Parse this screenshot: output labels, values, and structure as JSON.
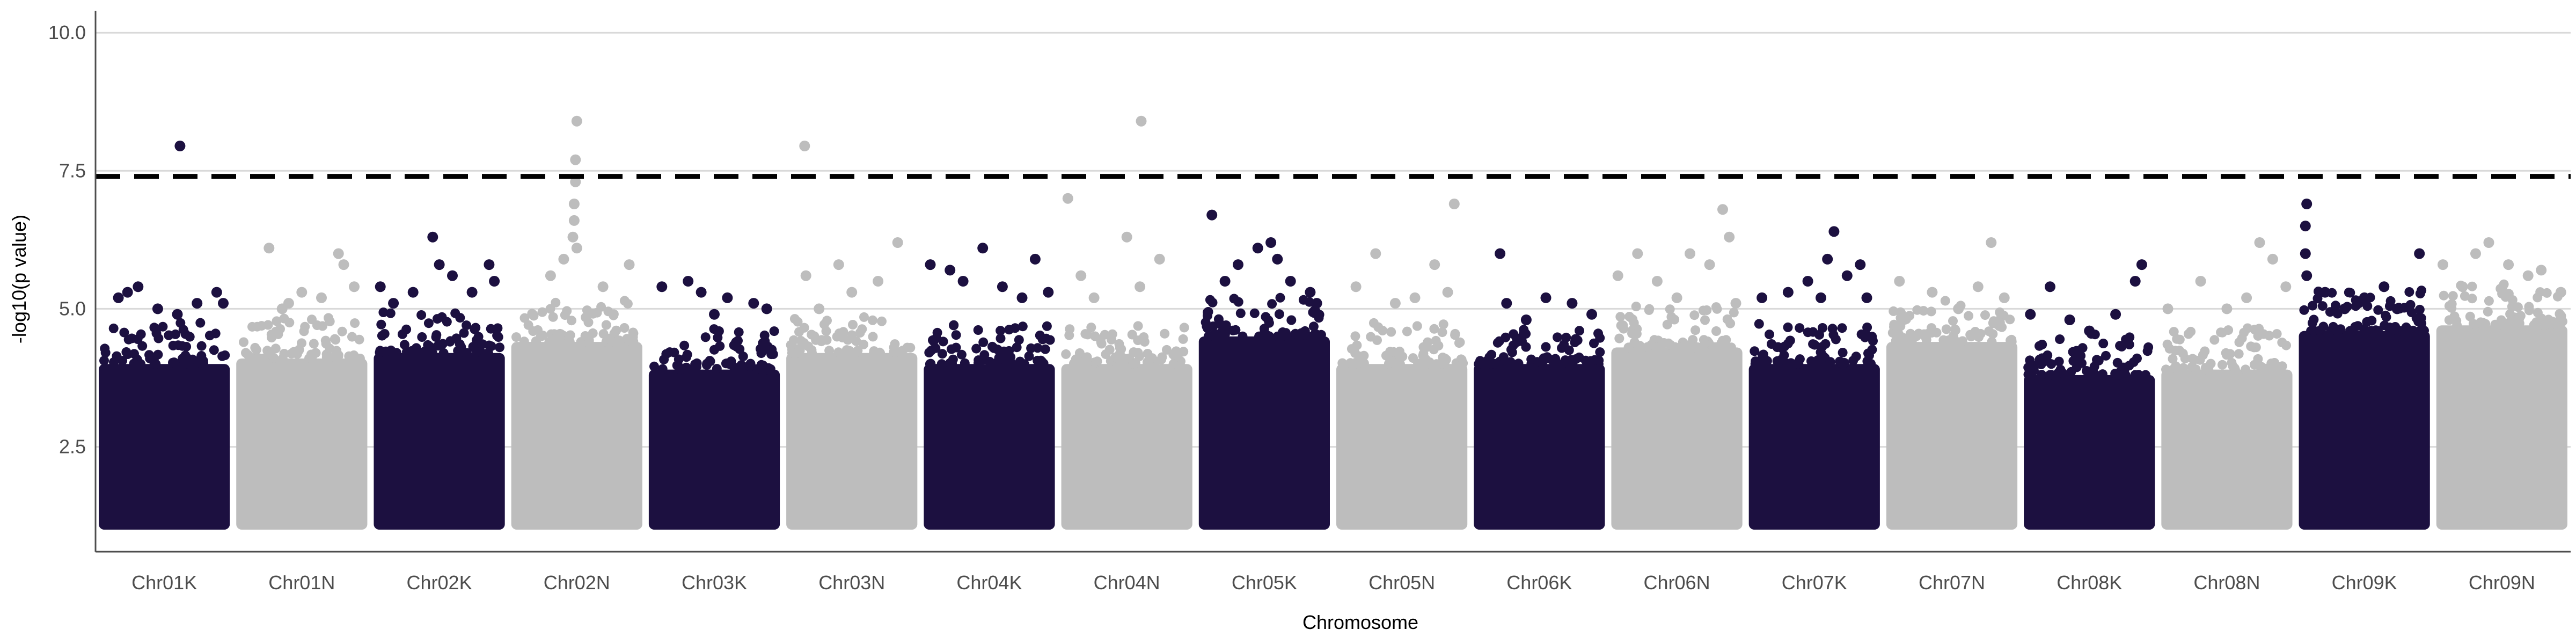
{
  "chart_data": {
    "type": "scatter",
    "subtype": "manhattan",
    "title": "",
    "xlabel": "Chromosome",
    "ylabel": "-log10(p value)",
    "ylim": [
      0.6,
      10.4
    ],
    "yticks": [
      2.5,
      5.0,
      7.5,
      10.0
    ],
    "ytick_labels": [
      "2.5",
      "5.0",
      "7.5",
      "10.0"
    ],
    "grid": "horizontal major lines",
    "legend": "none",
    "threshold": 7.4,
    "colors": {
      "dark": "#1c1040",
      "light": "#bdbdbd",
      "threshold": "#000000",
      "grid": "#d9d9d9",
      "axis": "#4d4d4d"
    },
    "categories": [
      "Chr01K",
      "Chr01N",
      "Chr02K",
      "Chr02N",
      "Chr03K",
      "Chr03N",
      "Chr04K",
      "Chr04N",
      "Chr05K",
      "Chr05N",
      "Chr06K",
      "Chr06N",
      "Chr07K",
      "Chr07N",
      "Chr08K",
      "Chr08N",
      "Chr09K",
      "Chr09N"
    ],
    "chromosomes": [
      {
        "name": "Chr01K",
        "color": "dark",
        "base_min": 1.0,
        "dense_max": 4.0,
        "top_points": [
          [
            0.15,
            5.2
          ],
          [
            0.22,
            5.3
          ],
          [
            0.3,
            5.4
          ],
          [
            0.45,
            5.0
          ],
          [
            0.6,
            4.9
          ],
          [
            0.75,
            5.1
          ],
          [
            0.9,
            5.3
          ],
          [
            0.95,
            5.1
          ],
          [
            0.62,
            7.95
          ]
        ]
      },
      {
        "name": "Chr01N",
        "color": "light",
        "base_min": 1.0,
        "dense_max": 4.1,
        "top_points": [
          [
            0.25,
            6.1
          ],
          [
            0.35,
            5.0
          ],
          [
            0.5,
            5.3
          ],
          [
            0.65,
            5.2
          ],
          [
            0.78,
            6.0
          ],
          [
            0.82,
            5.8
          ],
          [
            0.9,
            5.4
          ],
          [
            0.4,
            5.1
          ]
        ]
      },
      {
        "name": "Chr02K",
        "color": "dark",
        "base_min": 1.0,
        "dense_max": 4.2,
        "top_points": [
          [
            0.05,
            5.4
          ],
          [
            0.15,
            5.1
          ],
          [
            0.3,
            5.3
          ],
          [
            0.45,
            6.3
          ],
          [
            0.5,
            5.8
          ],
          [
            0.6,
            5.6
          ],
          [
            0.75,
            5.3
          ],
          [
            0.88,
            5.8
          ],
          [
            0.92,
            5.5
          ]
        ]
      },
      {
        "name": "Chr02N",
        "color": "light",
        "base_min": 1.0,
        "dense_max": 4.4,
        "top_points": [
          [
            0.3,
            5.6
          ],
          [
            0.4,
            5.9
          ],
          [
            0.47,
            6.3
          ],
          [
            0.48,
            6.6
          ],
          [
            0.48,
            6.9
          ],
          [
            0.49,
            7.3
          ],
          [
            0.49,
            7.7
          ],
          [
            0.5,
            8.4
          ],
          [
            0.5,
            6.1
          ],
          [
            0.7,
            5.4
          ],
          [
            0.9,
            5.8
          ]
        ]
      },
      {
        "name": "Chr03K",
        "color": "dark",
        "base_min": 1.0,
        "dense_max": 3.9,
        "top_points": [
          [
            0.1,
            5.4
          ],
          [
            0.3,
            5.5
          ],
          [
            0.4,
            5.3
          ],
          [
            0.5,
            4.9
          ],
          [
            0.6,
            5.2
          ],
          [
            0.8,
            5.1
          ],
          [
            0.9,
            5.0
          ]
        ]
      },
      {
        "name": "Chr03N",
        "color": "light",
        "base_min": 1.0,
        "dense_max": 4.2,
        "top_points": [
          [
            0.15,
            5.6
          ],
          [
            0.25,
            5.0
          ],
          [
            0.4,
            5.8
          ],
          [
            0.5,
            5.3
          ],
          [
            0.7,
            5.5
          ],
          [
            0.85,
            6.2
          ],
          [
            0.14,
            7.95
          ]
        ]
      },
      {
        "name": "Chr04K",
        "color": "dark",
        "base_min": 1.0,
        "dense_max": 4.0,
        "top_points": [
          [
            0.05,
            5.8
          ],
          [
            0.2,
            5.7
          ],
          [
            0.3,
            5.5
          ],
          [
            0.45,
            6.1
          ],
          [
            0.6,
            5.4
          ],
          [
            0.75,
            5.2
          ],
          [
            0.85,
            5.9
          ],
          [
            0.95,
            5.3
          ]
        ]
      },
      {
        "name": "Chr04N",
        "color": "light",
        "base_min": 1.0,
        "dense_max": 4.0,
        "top_points": [
          [
            0.05,
            7.0
          ],
          [
            0.15,
            5.6
          ],
          [
            0.25,
            5.2
          ],
          [
            0.5,
            6.3
          ],
          [
            0.6,
            5.4
          ],
          [
            0.75,
            5.9
          ],
          [
            0.61,
            8.4
          ]
        ]
      },
      {
        "name": "Chr05K",
        "color": "dark",
        "base_min": 1.0,
        "dense_max": 4.5,
        "top_points": [
          [
            0.1,
            6.7
          ],
          [
            0.2,
            5.5
          ],
          [
            0.3,
            5.8
          ],
          [
            0.45,
            6.1
          ],
          [
            0.55,
            6.2
          ],
          [
            0.6,
            5.9
          ],
          [
            0.7,
            5.5
          ],
          [
            0.85,
            5.3
          ],
          [
            0.9,
            5.1
          ]
        ]
      },
      {
        "name": "Chr05N",
        "color": "light",
        "base_min": 1.0,
        "dense_max": 4.0,
        "top_points": [
          [
            0.15,
            5.4
          ],
          [
            0.3,
            6.0
          ],
          [
            0.45,
            5.1
          ],
          [
            0.6,
            5.2
          ],
          [
            0.75,
            5.8
          ],
          [
            0.9,
            6.9
          ],
          [
            0.85,
            5.3
          ]
        ]
      },
      {
        "name": "Chr06K",
        "color": "dark",
        "base_min": 1.0,
        "dense_max": 4.0,
        "top_points": [
          [
            0.2,
            6.0
          ],
          [
            0.25,
            5.1
          ],
          [
            0.4,
            4.8
          ],
          [
            0.55,
            5.2
          ],
          [
            0.75,
            5.1
          ],
          [
            0.9,
            4.9
          ]
        ]
      },
      {
        "name": "Chr06N",
        "color": "light",
        "base_min": 1.0,
        "dense_max": 4.3,
        "top_points": [
          [
            0.05,
            5.6
          ],
          [
            0.2,
            6.0
          ],
          [
            0.35,
            5.5
          ],
          [
            0.5,
            5.2
          ],
          [
            0.6,
            6.0
          ],
          [
            0.75,
            5.8
          ],
          [
            0.85,
            6.8
          ],
          [
            0.9,
            6.3
          ],
          [
            0.95,
            5.1
          ]
        ]
      },
      {
        "name": "Chr07K",
        "color": "dark",
        "base_min": 1.0,
        "dense_max": 4.0,
        "top_points": [
          [
            0.1,
            5.2
          ],
          [
            0.3,
            5.3
          ],
          [
            0.45,
            5.5
          ],
          [
            0.55,
            5.2
          ],
          [
            0.6,
            5.9
          ],
          [
            0.65,
            6.4
          ],
          [
            0.75,
            5.6
          ],
          [
            0.85,
            5.8
          ],
          [
            0.9,
            5.2
          ]
        ]
      },
      {
        "name": "Chr07N",
        "color": "light",
        "base_min": 1.0,
        "dense_max": 4.4,
        "top_points": [
          [
            0.1,
            5.5
          ],
          [
            0.35,
            5.3
          ],
          [
            0.55,
            5.0
          ],
          [
            0.7,
            5.4
          ],
          [
            0.8,
            6.2
          ],
          [
            0.9,
            5.2
          ]
        ]
      },
      {
        "name": "Chr08K",
        "color": "dark",
        "base_min": 1.0,
        "dense_max": 3.8,
        "top_points": [
          [
            0.05,
            4.9
          ],
          [
            0.2,
            5.4
          ],
          [
            0.35,
            4.8
          ],
          [
            0.5,
            4.6
          ],
          [
            0.7,
            4.9
          ],
          [
            0.9,
            5.8
          ],
          [
            0.85,
            5.5
          ]
        ]
      },
      {
        "name": "Chr08N",
        "color": "light",
        "base_min": 1.0,
        "dense_max": 3.9,
        "top_points": [
          [
            0.05,
            5.0
          ],
          [
            0.3,
            5.5
          ],
          [
            0.5,
            5.0
          ],
          [
            0.65,
            5.2
          ],
          [
            0.75,
            6.2
          ],
          [
            0.85,
            5.9
          ],
          [
            0.95,
            5.4
          ]
        ]
      },
      {
        "name": "Chr09K",
        "color": "dark",
        "base_min": 1.0,
        "dense_max": 4.6,
        "top_points": [
          [
            0.05,
            6.0
          ],
          [
            0.05,
            6.5
          ],
          [
            0.06,
            6.9
          ],
          [
            0.06,
            5.6
          ],
          [
            0.2,
            5.3
          ],
          [
            0.35,
            5.0
          ],
          [
            0.5,
            5.2
          ],
          [
            0.65,
            5.4
          ],
          [
            0.75,
            5.0
          ],
          [
            0.92,
            6.0
          ]
        ]
      },
      {
        "name": "Chr09N",
        "color": "light",
        "base_min": 1.0,
        "dense_max": 4.7,
        "top_points": [
          [
            0.05,
            5.8
          ],
          [
            0.2,
            5.4
          ],
          [
            0.3,
            6.0
          ],
          [
            0.4,
            6.2
          ],
          [
            0.55,
            5.8
          ],
          [
            0.7,
            5.6
          ],
          [
            0.8,
            5.7
          ],
          [
            0.95,
            5.3
          ]
        ]
      }
    ]
  }
}
